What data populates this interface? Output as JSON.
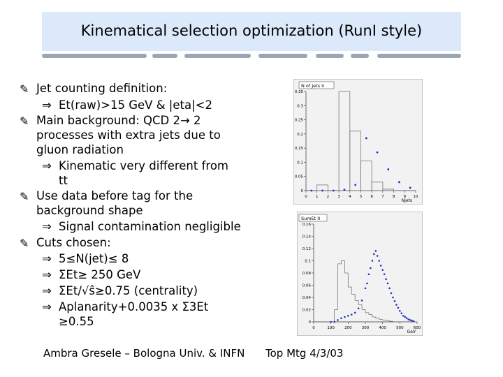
{
  "title": "Kinematical selection optimization (RunI style)",
  "bullet_glyph": "✎",
  "implies_glyph": "⇒",
  "lines": {
    "b1": "Jet counting definition:",
    "b1s1": "Et(raw)>15 GeV & |eta|<2",
    "b2a": "Main background: QCD 2→ 2",
    "b2b": "processes with extra jets due to",
    "b2c": "gluon radiation",
    "b2s1a": "Kinematic very different from",
    "b2s1b": "tt",
    "b3a": "Use data before tag for the",
    "b3b": "background shape",
    "b3s1": "Signal contamination negligible",
    "b4": "Cuts chosen:",
    "c1": "5≤N(jet)≤ 8",
    "c2": "ΣEt≥ 250 GeV",
    "c3": "ΣEt/√ŝ≥0.75 (centrality)",
    "c4a": "Aplanarity+0.0035 x Σ3Et",
    "c4b": "≥0.55"
  },
  "plot1": {
    "box_title": "N of Jets II",
    "x_axis_title": "Njets",
    "x_ticks": [
      "0",
      "1",
      "2",
      "3",
      "4",
      "5",
      "6",
      "7",
      "8",
      "9",
      "10"
    ],
    "y_ticks": [
      "0",
      "0.05",
      "0.1",
      "0.15",
      "0.2",
      "0.25",
      "0.3",
      "0.35"
    ]
  },
  "plot2": {
    "box_title": "SumEt II",
    "x_axis_title": "GeV",
    "x_ticks": [
      "0",
      "100",
      "200",
      "300",
      "400",
      "500",
      "600"
    ],
    "y_ticks": [
      "0",
      "0.02",
      "0.04",
      "0.06",
      "0.08",
      "0.1",
      "0.12",
      "0.14",
      "0.16"
    ]
  },
  "footer": {
    "left": "Ambra Gresele – Bologna Univ. & INFN",
    "right": "Top Mtg 4/3/03"
  },
  "chart_data": [
    {
      "type": "bar",
      "title": "N of Jets II",
      "xlabel": "Njets",
      "ylabel": "",
      "xlim": [
        0,
        10
      ],
      "ylim": [
        0,
        0.35
      ],
      "categories": [
        "0",
        "1",
        "2",
        "3",
        "4",
        "5",
        "6",
        "7",
        "8",
        "9"
      ],
      "series": [
        {
          "style": "histogram",
          "values": [
            0.0,
            0.02,
            0.0,
            0.35,
            0.21,
            0.105,
            0.03,
            0.005,
            0.0,
            0.0
          ]
        },
        {
          "style": "points",
          "values": [
            0.0,
            0.0,
            0.0,
            0.003,
            0.02,
            0.185,
            0.135,
            0.075,
            0.03,
            0.01
          ]
        }
      ]
    },
    {
      "type": "line",
      "title": "SumEt II",
      "xlabel": "GeV",
      "ylabel": "",
      "xlim": [
        0,
        600
      ],
      "ylim": [
        0,
        0.16
      ],
      "series": [
        {
          "style": "histogram",
          "x": [
            100,
            120,
            140,
            160,
            180,
            200,
            220,
            240,
            260,
            280,
            300,
            320,
            340,
            360,
            380,
            400,
            420,
            440
          ],
          "values": [
            0.0,
            0.02,
            0.095,
            0.1,
            0.08,
            0.057,
            0.045,
            0.035,
            0.028,
            0.02,
            0.015,
            0.012,
            0.008,
            0.006,
            0.004,
            0.003,
            0.002,
            0.001
          ]
        },
        {
          "style": "points",
          "x": [
            100,
            120,
            140,
            160,
            180,
            200,
            220,
            240,
            260,
            280,
            300,
            310,
            320,
            330,
            340,
            350,
            360,
            370,
            380,
            390,
            400,
            410,
            420,
            430,
            440,
            450,
            460,
            470,
            480,
            490,
            500,
            510,
            520,
            530,
            540,
            550,
            560,
            570,
            580
          ],
          "values": [
            0.0,
            0.0,
            0.003,
            0.006,
            0.008,
            0.01,
            0.012,
            0.015,
            0.022,
            0.035,
            0.055,
            0.063,
            0.078,
            0.088,
            0.1,
            0.111,
            0.116,
            0.108,
            0.1,
            0.092,
            0.085,
            0.078,
            0.07,
            0.063,
            0.055,
            0.047,
            0.04,
            0.034,
            0.028,
            0.023,
            0.018,
            0.014,
            0.01,
            0.008,
            0.006,
            0.004,
            0.003,
            0.002,
            0.001
          ]
        }
      ]
    }
  ]
}
